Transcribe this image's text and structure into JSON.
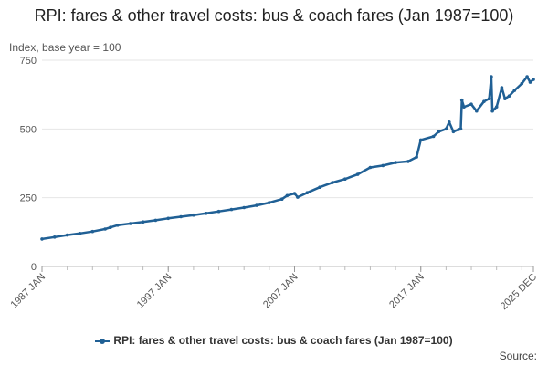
{
  "chart_data": {
    "type": "line",
    "title": "RPI: fares & other travel costs: bus & coach fares (Jan 1987=100)",
    "ylabel": "Index, base year = 100",
    "ylim": [
      0,
      750
    ],
    "yticks": [
      0,
      250,
      500,
      750
    ],
    "xlim": [
      "1987 JAN",
      "2025 DEC"
    ],
    "xticks": [
      "1987 JAN",
      "1997 JAN",
      "2007 JAN",
      "2017 JAN",
      "2025 DEC"
    ],
    "grid": "horizontal",
    "legend_position": "bottom",
    "series": [
      {
        "name": "RPI: fares & other travel costs: bus & coach fares (Jan 1987=100)",
        "color": "#206095",
        "points": [
          [
            "1987-01",
            100
          ],
          [
            "1988-01",
            107
          ],
          [
            "1989-01",
            114
          ],
          [
            "1990-01",
            120
          ],
          [
            "1991-01",
            127
          ],
          [
            "1992-01",
            136
          ],
          [
            "1992-06",
            142
          ],
          [
            "1993-01",
            150
          ],
          [
            "1994-01",
            156
          ],
          [
            "1995-01",
            162
          ],
          [
            "1996-01",
            168
          ],
          [
            "1997-01",
            175
          ],
          [
            "1998-01",
            181
          ],
          [
            "1999-01",
            187
          ],
          [
            "2000-01",
            193
          ],
          [
            "2001-01",
            200
          ],
          [
            "2002-01",
            207
          ],
          [
            "2003-01",
            214
          ],
          [
            "2004-01",
            222
          ],
          [
            "2005-01",
            232
          ],
          [
            "2006-01",
            245
          ],
          [
            "2006-06",
            258
          ],
          [
            "2007-01",
            265
          ],
          [
            "2007-04",
            252
          ],
          [
            "2008-01",
            268
          ],
          [
            "2009-01",
            288
          ],
          [
            "2010-01",
            305
          ],
          [
            "2011-01",
            318
          ],
          [
            "2012-01",
            335
          ],
          [
            "2013-01",
            360
          ],
          [
            "2014-01",
            367
          ],
          [
            "2015-01",
            378
          ],
          [
            "2016-01",
            382
          ],
          [
            "2016-09",
            398
          ],
          [
            "2017-01",
            460
          ],
          [
            "2018-01",
            473
          ],
          [
            "2018-06",
            490
          ],
          [
            "2019-01",
            500
          ],
          [
            "2019-04",
            525
          ],
          [
            "2019-08",
            490
          ],
          [
            "2020-01",
            498
          ],
          [
            "2020-03",
            500
          ],
          [
            "2020-04",
            605
          ],
          [
            "2020-06",
            580
          ],
          [
            "2021-01",
            590
          ],
          [
            "2021-06",
            565
          ],
          [
            "2022-01",
            600
          ],
          [
            "2022-06",
            610
          ],
          [
            "2022-08",
            690
          ],
          [
            "2022-09",
            565
          ],
          [
            "2023-01",
            580
          ],
          [
            "2023-06",
            650
          ],
          [
            "2023-09",
            610
          ],
          [
            "2024-01",
            620
          ],
          [
            "2024-06",
            640
          ],
          [
            "2025-01",
            665
          ],
          [
            "2025-06",
            690
          ],
          [
            "2025-09",
            670
          ],
          [
            "2025-12",
            680
          ]
        ]
      }
    ]
  },
  "source_label": "Source:"
}
